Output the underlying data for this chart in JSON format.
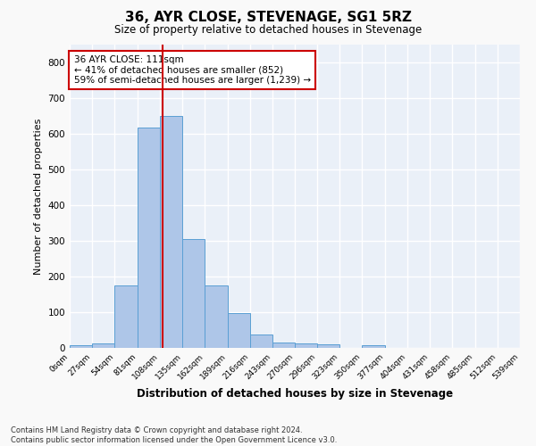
{
  "title": "36, AYR CLOSE, STEVENAGE, SG1 5RZ",
  "subtitle": "Size of property relative to detached houses in Stevenage",
  "xlabel": "Distribution of detached houses by size in Stevenage",
  "ylabel": "Number of detached properties",
  "bin_edges": [
    0,
    27,
    54,
    81,
    108,
    135,
    162,
    189,
    216,
    243,
    270,
    296,
    323,
    350,
    377,
    404,
    431,
    458,
    485,
    512,
    539
  ],
  "bar_heights": [
    8,
    13,
    175,
    618,
    650,
    305,
    175,
    97,
    38,
    14,
    12,
    10,
    0,
    8,
    0,
    0,
    0,
    0,
    0,
    0
  ],
  "bar_color": "#aec6e8",
  "bar_edge_color": "#5a9fd4",
  "property_sqm": 111,
  "vline_color": "#cc0000",
  "annotation_text": "36 AYR CLOSE: 111sqm\n← 41% of detached houses are smaller (852)\n59% of semi-detached houses are larger (1,239) →",
  "annotation_box_color": "#ffffff",
  "annotation_box_edge_color": "#cc0000",
  "ylim": [
    0,
    850
  ],
  "background_color": "#eaf0f8",
  "grid_color": "#ffffff",
  "fig_background": "#f9f9f9",
  "footnote": "Contains HM Land Registry data © Crown copyright and database right 2024.\nContains public sector information licensed under the Open Government Licence v3.0."
}
